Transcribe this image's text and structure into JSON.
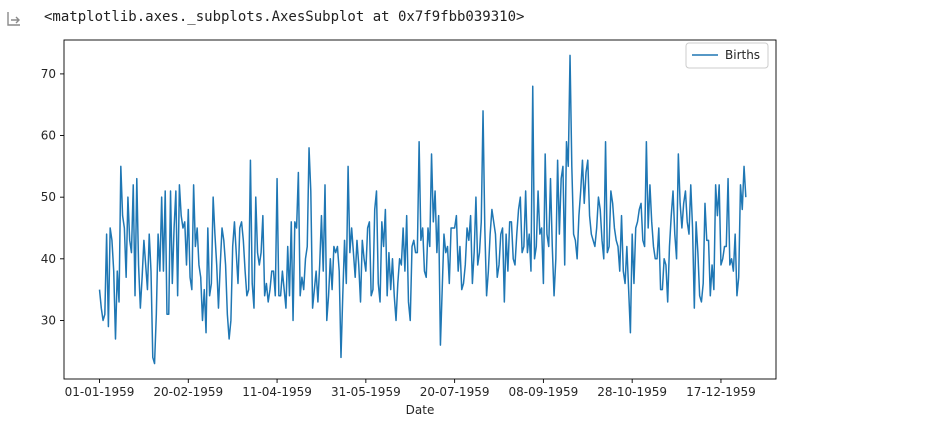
{
  "output": {
    "repr_text": "<matplotlib.axes._subplots.AxesSubplot at 0x7f9fbb039310>",
    "icon": "output-arrow-icon"
  },
  "chart_data": {
    "type": "line",
    "xlabel": "Date",
    "ylabel": "",
    "title": "",
    "x_tick_labels": [
      "01-01-1959",
      "20-02-1959",
      "11-04-1959",
      "31-05-1959",
      "20-07-1959",
      "08-09-1959",
      "28-10-1959",
      "17-12-1959"
    ],
    "x_tick_days": [
      0,
      50,
      100,
      150,
      200,
      250,
      300,
      350
    ],
    "y_ticks": [
      30,
      40,
      50,
      60,
      70
    ],
    "xlim_days": [
      -20,
      381
    ],
    "ylim": [
      20.5,
      75.5
    ],
    "legend": {
      "placement": "upper right"
    },
    "grid": false,
    "line_color": "#1f77b4",
    "series": [
      {
        "name": "Births",
        "start_date": "01-01-1959",
        "values": [
          35,
          32,
          30,
          31,
          44,
          29,
          45,
          43,
          38,
          27,
          38,
          33,
          55,
          47,
          45,
          37,
          50,
          43,
          41,
          52,
          34,
          53,
          39,
          32,
          37,
          43,
          39,
          35,
          44,
          38,
          24,
          23,
          31,
          44,
          38,
          50,
          38,
          51,
          31,
          31,
          51,
          36,
          45,
          51,
          34,
          52,
          47,
          45,
          46,
          39,
          48,
          37,
          35,
          52,
          42,
          45,
          39,
          37,
          30,
          35,
          28,
          45,
          34,
          36,
          50,
          44,
          39,
          32,
          39,
          45,
          43,
          39,
          31,
          27,
          30,
          42,
          46,
          41,
          36,
          45,
          46,
          43,
          38,
          34,
          35,
          56,
          36,
          32,
          50,
          41,
          39,
          41,
          47,
          34,
          36,
          33,
          35,
          38,
          38,
          34,
          53,
          34,
          34,
          38,
          35,
          32,
          42,
          34,
          46,
          30,
          46,
          45,
          54,
          34,
          37,
          35,
          40,
          42,
          58,
          51,
          32,
          35,
          38,
          33,
          39,
          47,
          38,
          52,
          30,
          34,
          40,
          35,
          42,
          41,
          42,
          38,
          24,
          34,
          43,
          36,
          55,
          41,
          45,
          41,
          37,
          43,
          39,
          33,
          43,
          40,
          38,
          45,
          46,
          34,
          35,
          48,
          51,
          36,
          33,
          46,
          42,
          48,
          34,
          41,
          35,
          40,
          34,
          30,
          36,
          40,
          39,
          45,
          38,
          47,
          33,
          30,
          42,
          43,
          41,
          41,
          59,
          43,
          45,
          38,
          37,
          45,
          42,
          57,
          46,
          51,
          41,
          47,
          26,
          35,
          44,
          41,
          42,
          36,
          45,
          45,
          45,
          47,
          38,
          42,
          35,
          36,
          39,
          45,
          43,
          47,
          36,
          41,
          50,
          39,
          41,
          46,
          64,
          45,
          34,
          38,
          44,
          48,
          46,
          44,
          37,
          39,
          44,
          45,
          33,
          44,
          38,
          46,
          46,
          40,
          39,
          44,
          48,
          50,
          41,
          42,
          51,
          41,
          44,
          38,
          68,
          40,
          42,
          51,
          44,
          45,
          36,
          57,
          44,
          42,
          53,
          42,
          34,
          40,
          56,
          44,
          53,
          55,
          39,
          59,
          55,
          73,
          55,
          44,
          43,
          40,
          47,
          51,
          56,
          49,
          54,
          56,
          47,
          44,
          43,
          42,
          45,
          50,
          48,
          43,
          40,
          59,
          41,
          42,
          51,
          49,
          45,
          43,
          42,
          38,
          47,
          38,
          36,
          42,
          35,
          28,
          44,
          36,
          45,
          46,
          48,
          49,
          43,
          42,
          59,
          45,
          52,
          46,
          42,
          40,
          40,
          45,
          35,
          35,
          40,
          39,
          33,
          42,
          47,
          51,
          44,
          40,
          57,
          49,
          45,
          49,
          51,
          46,
          44,
          52,
          45,
          32,
          46,
          41,
          34,
          33,
          36,
          49,
          43,
          43,
          34,
          39,
          35,
          52,
          47,
          52,
          39,
          40,
          42,
          42,
          53,
          39,
          40,
          38,
          44,
          34,
          37,
          52,
          48,
          55,
          50
        ]
      }
    ]
  }
}
